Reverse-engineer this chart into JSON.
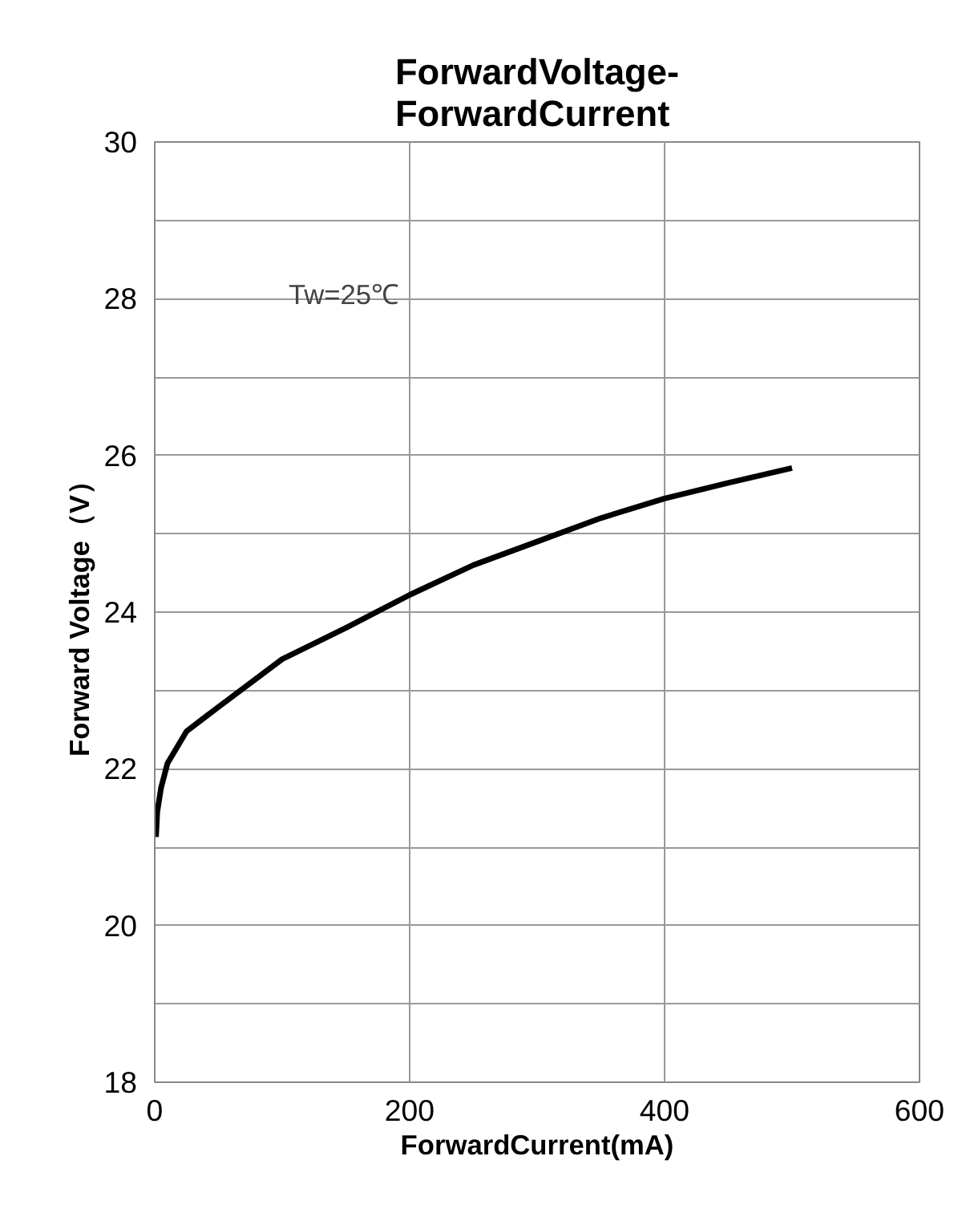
{
  "chart_data": {
    "type": "line",
    "title": "ForwardVoltage-\nForwardCurrent",
    "xlabel": "ForwardCurrent(mA)",
    "ylabel": "Forward Voltage（V）",
    "annotations": [
      "Tw=25℃"
    ],
    "series": [
      {
        "color": "#000000",
        "x": [
          1,
          2,
          5,
          10,
          25,
          50,
          100,
          150,
          200,
          250,
          300,
          350,
          400,
          450,
          500
        ],
        "values": [
          21.13,
          21.45,
          21.76,
          22.07,
          22.48,
          22.79,
          23.4,
          23.8,
          24.22,
          24.6,
          24.9,
          25.2,
          25.45,
          25.65,
          25.84
        ]
      }
    ],
    "xlim": [
      0,
      600
    ],
    "xticks": [
      0,
      200,
      400,
      600
    ],
    "ylim": [
      18,
      30
    ],
    "yticks": [
      18,
      {
        "value": 19,
        "label": null
      },
      20,
      {
        "value": 21,
        "label": null
      },
      22,
      {
        "value": 23,
        "label": null
      },
      24,
      {
        "value": 25,
        "label": null
      },
      26,
      {
        "value": 27,
        "label": null
      },
      28,
      {
        "value": 29,
        "label": null
      },
      30
    ],
    "grid": true,
    "marker": "none",
    "line_style": "solid"
  }
}
